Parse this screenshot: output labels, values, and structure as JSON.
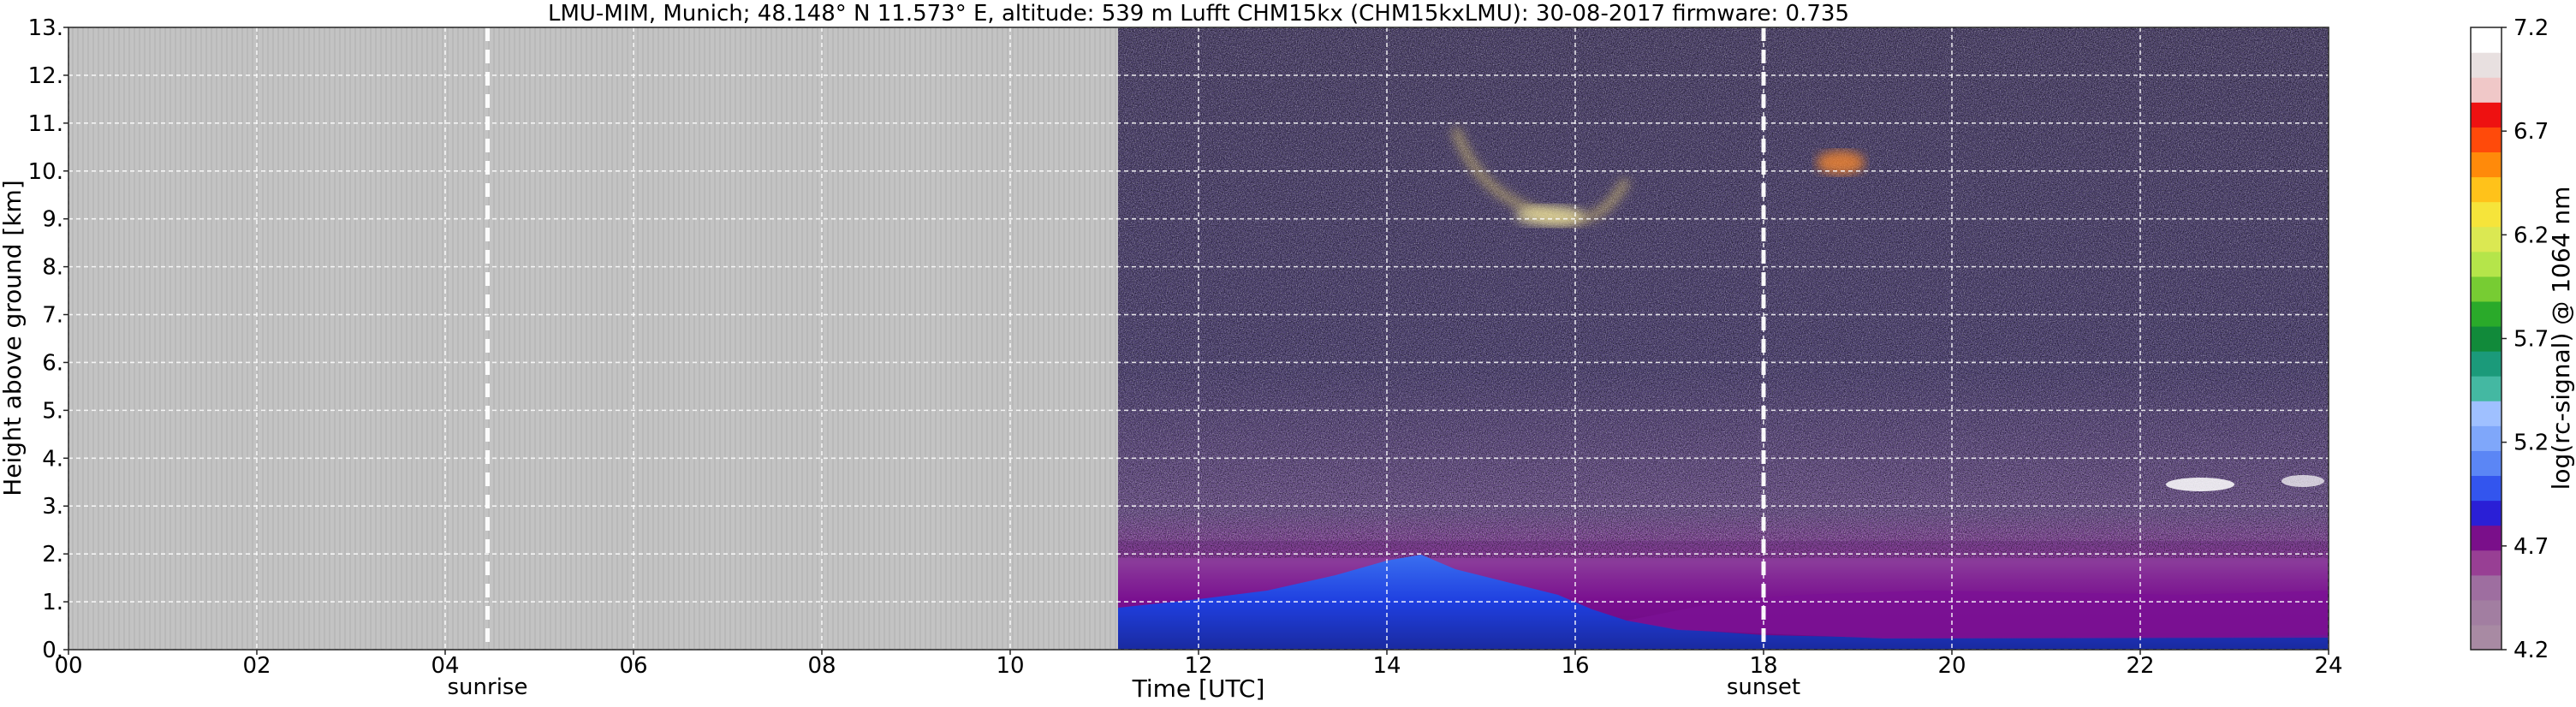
{
  "chart_data": {
    "type": "heatmap",
    "title": "LMU-MIM, Munich; 48.148° N 11.573° E, altitude: 539 m    Lufft CHM15kx (CHM15kxLMU): 30-08-2017    firmware: 0.735",
    "xlabel": "Time [UTC]",
    "ylabel": "Height above ground [km]",
    "xlim": [
      0,
      24
    ],
    "ylim": [
      0,
      13
    ],
    "x_ticks": [
      "00",
      "02",
      "04",
      "06",
      "08",
      "10",
      "12",
      "14",
      "16",
      "18",
      "20",
      "22",
      "24"
    ],
    "y_ticks": [
      "0.",
      "1.",
      "2.",
      "3.",
      "4.",
      "5.",
      "6.",
      "7.",
      "8.",
      "9.",
      "10.",
      "11.",
      "12.",
      "13."
    ],
    "grid": true,
    "no_data_until_hour": 11.1,
    "annotations": [
      {
        "label": "sunrise",
        "x": 4.45
      },
      {
        "label": "sunset",
        "x": 18.0
      }
    ],
    "colorbar": {
      "label": "log(rc-signal) @ 1064 nm",
      "range": [
        4.2,
        7.2
      ],
      "tick_labels": [
        "4.2",
        "4.7",
        "5.2",
        "5.7",
        "6.2",
        "6.7",
        "7.2"
      ],
      "colors": [
        "#a88aa3",
        "#a27ea1",
        "#9e6ea0",
        "#983f94",
        "#7a0f8a",
        "#2a1fd6",
        "#3355ee",
        "#5b86f5",
        "#7fa7fa",
        "#9fc0ff",
        "#44b8a2",
        "#1b9a7a",
        "#118a3a",
        "#2aaa2a",
        "#77cc33",
        "#b5e54a",
        "#dbe852",
        "#f6e43a",
        "#ffc21a",
        "#ff8a0a",
        "#ff4a0a",
        "#ee1111",
        "#f0c8c8",
        "#e8e0e0",
        "#ffffff"
      ]
    }
  }
}
